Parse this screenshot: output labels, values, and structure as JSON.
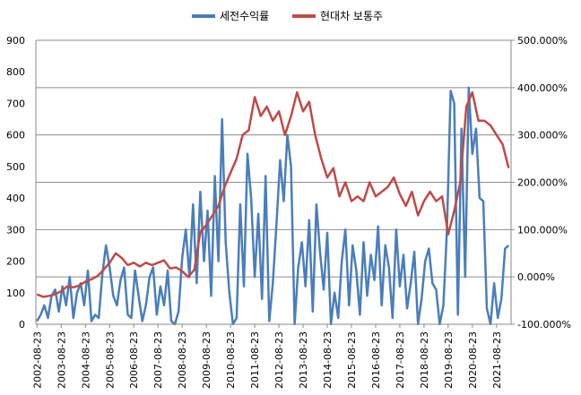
{
  "chart_data": {
    "type": "line",
    "legend_position": "top-center",
    "grid": true,
    "x_tick_labels": [
      "2002-08-23",
      "2003-08-23",
      "2004-08-23",
      "2005-08-23",
      "2006-08-23",
      "2007-08-23",
      "2008-08-23",
      "2009-08-23",
      "2010-08-23",
      "2011-08-23",
      "2012-08-23",
      "2013-08-23",
      "2014-08-23",
      "2015-08-23",
      "2016-08-23",
      "2017-08-23",
      "2018-08-23",
      "2019-08-23",
      "2020-08-23",
      "2021-08-23"
    ],
    "y_left": {
      "min": 0,
      "max": 900,
      "ticks": [
        "0",
        "100",
        "200",
        "300",
        "400",
        "500",
        "600",
        "700",
        "800",
        "900"
      ]
    },
    "y_right": {
      "min": -1.0,
      "max": 5.0,
      "ticks": [
        "-100.000%",
        "0.000%",
        "100.000%",
        "200.000%",
        "300.000%",
        "400.000%",
        "500.000%"
      ]
    },
    "series": [
      {
        "name": "세전수익률",
        "axis": "left",
        "color": "#4a7ebb",
        "x": [
          2002.65,
          2002.8,
          2002.95,
          2003.1,
          2003.25,
          2003.4,
          2003.55,
          2003.7,
          2003.85,
          2004.0,
          2004.15,
          2004.3,
          2004.45,
          2004.6,
          2004.75,
          2004.9,
          2005.05,
          2005.2,
          2005.35,
          2005.5,
          2005.65,
          2005.8,
          2005.95,
          2006.1,
          2006.25,
          2006.4,
          2006.55,
          2006.7,
          2006.85,
          2007.0,
          2007.15,
          2007.3,
          2007.45,
          2007.6,
          2007.75,
          2007.9,
          2008.05,
          2008.2,
          2008.35,
          2008.5,
          2008.65,
          2008.8,
          2008.95,
          2009.1,
          2009.25,
          2009.4,
          2009.55,
          2009.7,
          2009.85,
          2010.0,
          2010.15,
          2010.3,
          2010.45,
          2010.6,
          2010.75,
          2010.9,
          2011.05,
          2011.2,
          2011.35,
          2011.5,
          2011.65,
          2011.8,
          2011.95,
          2012.1,
          2012.25,
          2012.4,
          2012.55,
          2012.7,
          2012.85,
          2013.0,
          2013.15,
          2013.3,
          2013.45,
          2013.6,
          2013.75,
          2013.9,
          2014.05,
          2014.2,
          2014.35,
          2014.5,
          2014.65,
          2014.8,
          2014.95,
          2015.1,
          2015.25,
          2015.4,
          2015.55,
          2015.7,
          2015.85,
          2016.0,
          2016.15,
          2016.3,
          2016.45,
          2016.6,
          2016.75,
          2016.9,
          2017.05,
          2017.2,
          2017.35,
          2017.5,
          2017.65,
          2017.8,
          2017.95,
          2018.1,
          2018.25,
          2018.4,
          2018.55,
          2018.7,
          2018.85,
          2019.0,
          2019.15,
          2019.3,
          2019.45,
          2019.6,
          2019.75,
          2019.9,
          2020.05,
          2020.2,
          2020.35,
          2020.5,
          2020.65,
          2020.8,
          2020.95,
          2021.1,
          2021.25,
          2021.4,
          2021.55,
          2021.7,
          2021.85,
          2022.0,
          2022.15
        ],
        "values": [
          10,
          30,
          60,
          20,
          90,
          110,
          40,
          120,
          60,
          150,
          20,
          100,
          130,
          60,
          170,
          10,
          30,
          20,
          160,
          250,
          180,
          90,
          60,
          140,
          180,
          30,
          20,
          170,
          90,
          10,
          60,
          150,
          180,
          30,
          120,
          60,
          170,
          10,
          0,
          40,
          210,
          300,
          150,
          380,
          130,
          420,
          200,
          360,
          90,
          470,
          200,
          650,
          260,
          100,
          0,
          20,
          380,
          120,
          540,
          400,
          150,
          350,
          80,
          470,
          10,
          130,
          320,
          520,
          390,
          600,
          500,
          0,
          180,
          260,
          120,
          330,
          40,
          380,
          230,
          110,
          290,
          0,
          100,
          20,
          200,
          300,
          60,
          250,
          170,
          30,
          260,
          90,
          220,
          140,
          310,
          60,
          250,
          180,
          20,
          300,
          120,
          220,
          50,
          130,
          230,
          0,
          80,
          200,
          240,
          130,
          110,
          0,
          60,
          300,
          740,
          700,
          30,
          620,
          150,
          750,
          540,
          620,
          400,
          390,
          50,
          0,
          130,
          20,
          80,
          240,
          250
        ]
      },
      {
        "name": "현대차 보통주",
        "axis": "right",
        "color": "#be4b48",
        "x": [
          2002.65,
          2002.9,
          2003.15,
          2003.4,
          2003.65,
          2003.9,
          2004.15,
          2004.4,
          2004.65,
          2004.9,
          2005.15,
          2005.4,
          2005.65,
          2005.9,
          2006.15,
          2006.4,
          2006.65,
          2006.9,
          2007.15,
          2007.4,
          2007.65,
          2007.9,
          2008.15,
          2008.4,
          2008.65,
          2008.9,
          2009.15,
          2009.4,
          2009.65,
          2009.9,
          2010.15,
          2010.4,
          2010.65,
          2010.9,
          2011.15,
          2011.4,
          2011.65,
          2011.9,
          2012.15,
          2012.4,
          2012.65,
          2012.9,
          2013.15,
          2013.4,
          2013.65,
          2013.9,
          2014.15,
          2014.4,
          2014.65,
          2014.9,
          2015.15,
          2015.4,
          2015.65,
          2015.9,
          2016.15,
          2016.4,
          2016.65,
          2016.9,
          2017.15,
          2017.4,
          2017.65,
          2017.9,
          2018.15,
          2018.4,
          2018.65,
          2018.9,
          2019.15,
          2019.4,
          2019.65,
          2019.9,
          2020.15,
          2020.4,
          2020.65,
          2020.9,
          2021.15,
          2021.4,
          2021.65,
          2021.9,
          2022.15
        ],
        "values": [
          -0.37,
          -0.42,
          -0.4,
          -0.37,
          -0.3,
          -0.2,
          -0.22,
          -0.18,
          -0.1,
          -0.05,
          0.02,
          0.15,
          0.3,
          0.5,
          0.4,
          0.25,
          0.3,
          0.22,
          0.3,
          0.25,
          0.3,
          0.35,
          0.18,
          0.2,
          0.12,
          0.0,
          0.15,
          0.95,
          1.1,
          1.3,
          1.5,
          1.9,
          2.2,
          2.5,
          3.0,
          3.1,
          3.8,
          3.4,
          3.6,
          3.3,
          3.5,
          3.0,
          3.4,
          3.9,
          3.5,
          3.7,
          3.0,
          2.5,
          2.1,
          2.3,
          1.7,
          2.0,
          1.6,
          1.7,
          1.6,
          2.0,
          1.7,
          1.8,
          1.9,
          2.1,
          1.75,
          1.5,
          1.8,
          1.3,
          1.6,
          1.8,
          1.6,
          1.7,
          0.9,
          1.4,
          2.0,
          3.6,
          3.9,
          3.3,
          3.3,
          3.2,
          3.0,
          2.8,
          2.3
        ]
      }
    ]
  }
}
